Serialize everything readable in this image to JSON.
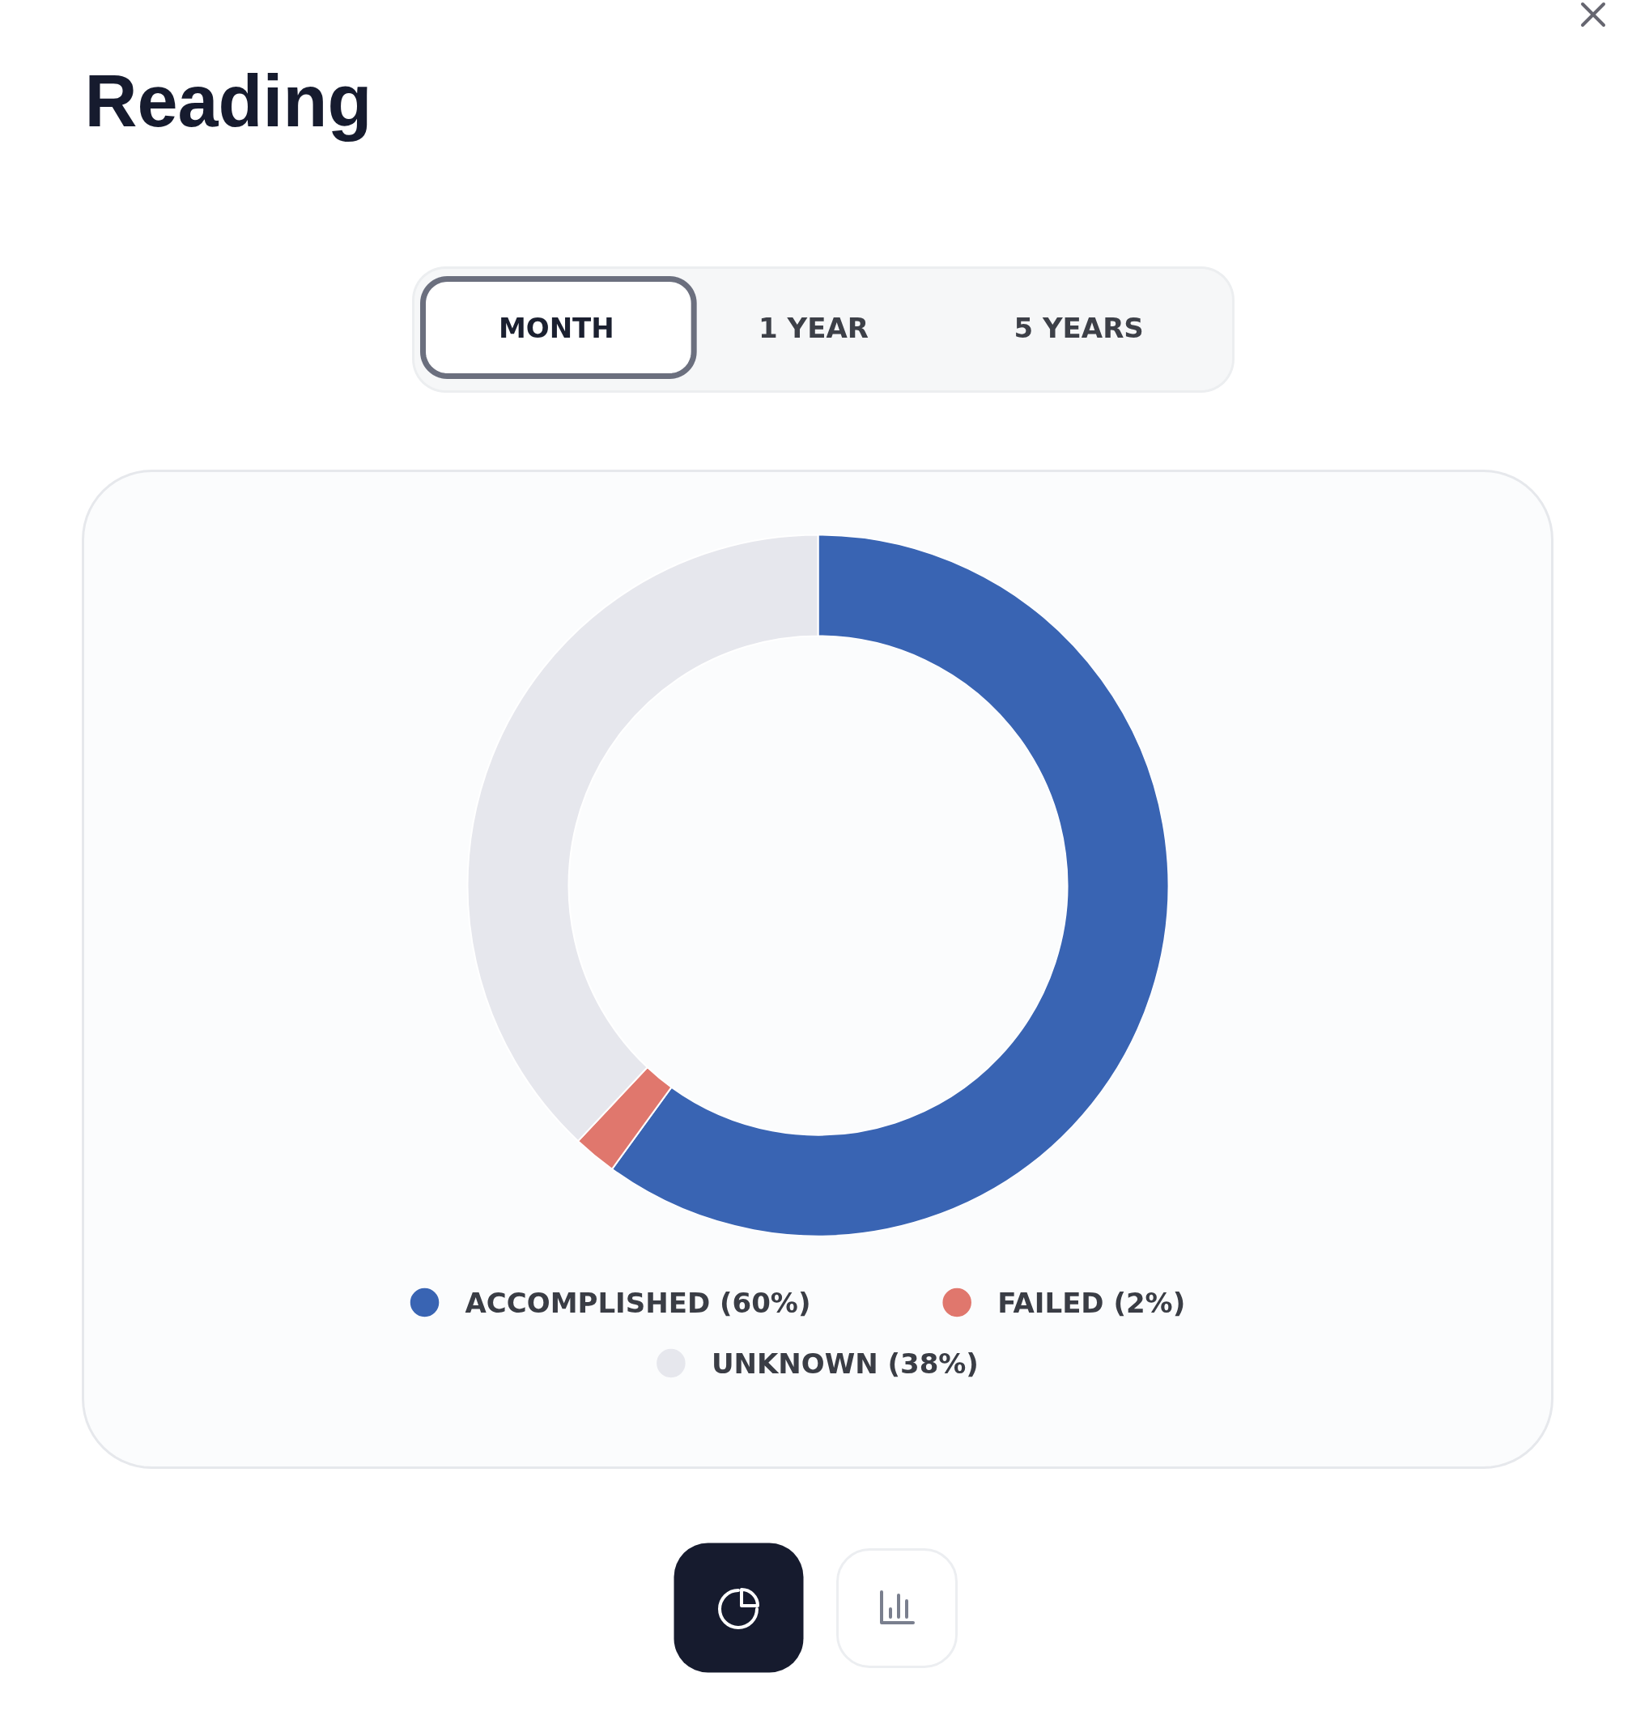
{
  "chart_data": {
    "type": "donut",
    "title": "Reading",
    "categories": [
      "ACCOMPLISHED (60%)",
      "FAILED (2%)",
      "UNKNOWN (38%)"
    ],
    "values": [
      60,
      2,
      38
    ],
    "colors": [
      "#3964b3",
      "#e0776d",
      "#e6e7ed"
    ],
    "legend": "bottom",
    "annotations": [
      "MONTH",
      "1 YEAR",
      "5 YEARS"
    ]
  }
}
